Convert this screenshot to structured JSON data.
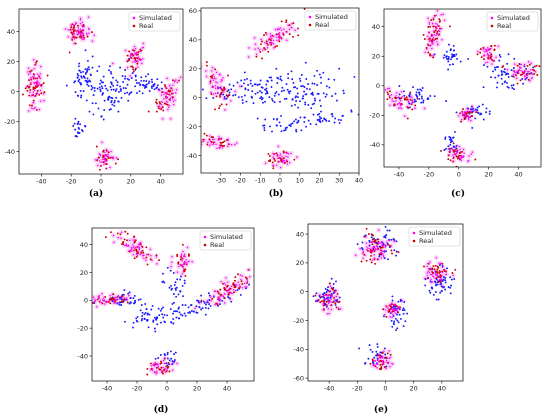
{
  "chart_data": [
    {
      "type": "scatter",
      "panel_label": "(a)",
      "legend": {
        "position": "top-right",
        "entries": [
          "Simulated",
          "Real"
        ]
      },
      "xlim": [
        -55,
        55
      ],
      "ylim": [
        -55,
        55
      ],
      "xticks": [
        -40,
        -20,
        0,
        20,
        40
      ],
      "yticks": [
        -40,
        -20,
        0,
        20,
        40
      ],
      "series": [
        {
          "name": "Simulated",
          "color": "#ff00ff",
          "clusters": [
            {
              "cx": -15,
              "cy": 40,
              "sx": 4,
              "sy": 4,
              "n": 55,
              "theta": 0
            },
            {
              "cx": 22,
              "cy": 22,
              "sx": 3,
              "sy": 4,
              "n": 40,
              "theta": -0.6
            },
            {
              "cx": -45,
              "cy": 3,
              "sx": 3,
              "sy": 7,
              "n": 60,
              "theta": 0
            },
            {
              "cx": 45,
              "cy": -3,
              "sx": 3,
              "sy": 6,
              "n": 50,
              "theta": -0.5
            },
            {
              "cx": 2,
              "cy": -45,
              "sx": 3,
              "sy": 3,
              "n": 35,
              "theta": 0
            }
          ]
        },
        {
          "name": "Real",
          "color": "#cc0000",
          "clusters": [
            {
              "cx": -15,
              "cy": 40,
              "sx": 4,
              "sy": 4,
              "n": 40,
              "theta": 0
            },
            {
              "cx": 22,
              "cy": 22,
              "sx": 3,
              "sy": 4,
              "n": 30,
              "theta": -0.6
            },
            {
              "cx": -45,
              "cy": 3,
              "sx": 3,
              "sy": 7,
              "n": 45,
              "theta": 0
            },
            {
              "cx": 45,
              "cy": -3,
              "sx": 3,
              "sy": 6,
              "n": 35,
              "theta": -0.5
            },
            {
              "cx": 2,
              "cy": -45,
              "sx": 3,
              "sy": 3,
              "n": 28,
              "theta": 0
            }
          ]
        },
        {
          "name": "Blue",
          "color": "#1a1aff",
          "clusters": [
            {
              "cx": -12,
              "cy": 10,
              "sx": 4,
              "sy": 6,
              "n": 45,
              "theta": 0
            },
            {
              "cx": 5,
              "cy": 2,
              "sx": 10,
              "sy": 8,
              "n": 110,
              "theta": 0.3
            },
            {
              "cx": 30,
              "cy": 5,
              "sx": 8,
              "sy": 3,
              "n": 45,
              "theta": -0.2
            },
            {
              "cx": -15,
              "cy": -25,
              "sx": 3,
              "sy": 4,
              "n": 20,
              "theta": 0
            }
          ]
        }
      ]
    },
    {
      "type": "scatter",
      "panel_label": "(b)",
      "legend": {
        "position": "top-right",
        "entries": [
          "Simulated",
          "Real"
        ]
      },
      "xlim": [
        -40,
        40
      ],
      "ylim": [
        -52,
        62
      ],
      "xticks": [
        -30,
        -20,
        -10,
        0,
        10,
        20,
        30,
        40
      ],
      "yticks": [
        -40,
        -20,
        0,
        20,
        40,
        60
      ],
      "series": [
        {
          "name": "Simulated",
          "color": "#ff00ff",
          "clusters": [
            {
              "cx": -2,
              "cy": 42,
              "sx": 8,
              "sy": 3,
              "n": 55,
              "theta": 0.75
            },
            {
              "cx": -31,
              "cy": 8,
              "sx": 3,
              "sy": 7,
              "n": 45,
              "theta": 0.3
            },
            {
              "cx": -33,
              "cy": -30,
              "sx": 4,
              "sy": 2,
              "n": 35,
              "theta": -0.2
            },
            {
              "cx": 0,
              "cy": -42,
              "sx": 3,
              "sy": 3,
              "n": 35,
              "theta": 0
            }
          ]
        },
        {
          "name": "Real",
          "color": "#cc0000",
          "clusters": [
            {
              "cx": -2,
              "cy": 42,
              "sx": 8,
              "sy": 3,
              "n": 40,
              "theta": 0.75
            },
            {
              "cx": -31,
              "cy": 8,
              "sx": 3,
              "sy": 7,
              "n": 32,
              "theta": 0.3
            },
            {
              "cx": -33,
              "cy": -30,
              "sx": 4,
              "sy": 2,
              "n": 25,
              "theta": -0.2
            },
            {
              "cx": 0,
              "cy": -42,
              "sx": 3,
              "sy": 3,
              "n": 26,
              "theta": 0
            }
          ]
        },
        {
          "name": "Blue",
          "color": "#1a1aff",
          "clusters": [
            {
              "cx": -15,
              "cy": 5,
              "sx": 12,
              "sy": 5,
              "n": 70,
              "theta": 0
            },
            {
              "cx": 10,
              "cy": 5,
              "sx": 13,
              "sy": 7,
              "n": 110,
              "theta": -0.2
            },
            {
              "cx": 20,
              "cy": -15,
              "sx": 8,
              "sy": 3,
              "n": 40,
              "theta": 0.3
            },
            {
              "cx": 0,
              "cy": -18,
              "sx": 6,
              "sy": 3,
              "n": 30,
              "theta": 0
            }
          ]
        }
      ]
    },
    {
      "type": "scatter",
      "panel_label": "(c)",
      "legend": {
        "position": "top-right",
        "entries": [
          "Simulated",
          "Real"
        ]
      },
      "xlim": [
        -50,
        55
      ],
      "ylim": [
        -55,
        52
      ],
      "xticks": [
        -40,
        -20,
        0,
        20,
        40
      ],
      "yticks": [
        -40,
        -20,
        0,
        20,
        40
      ],
      "series": [
        {
          "name": "Simulated",
          "color": "#ff00ff",
          "clusters": [
            {
              "cx": -17,
              "cy": 35,
              "sx": 3,
              "sy": 8,
              "n": 55,
              "theta": -0.2
            },
            {
              "cx": -38,
              "cy": -10,
              "sx": 6,
              "sy": 3,
              "n": 40,
              "theta": -0.35
            },
            {
              "cx": 20,
              "cy": 22,
              "sx": 3,
              "sy": 3,
              "n": 30,
              "theta": 0
            },
            {
              "cx": 42,
              "cy": 10,
              "sx": 5,
              "sy": 3,
              "n": 40,
              "theta": 0
            },
            {
              "cx": 5,
              "cy": -20,
              "sx": 3,
              "sy": 2,
              "n": 28,
              "theta": 0
            },
            {
              "cx": 0,
              "cy": -46,
              "sx": 4,
              "sy": 3,
              "n": 35,
              "theta": 0
            }
          ]
        },
        {
          "name": "Real",
          "color": "#cc0000",
          "clusters": [
            {
              "cx": -17,
              "cy": 35,
              "sx": 3,
              "sy": 8,
              "n": 40,
              "theta": -0.2
            },
            {
              "cx": -38,
              "cy": -10,
              "sx": 6,
              "sy": 3,
              "n": 30,
              "theta": -0.35
            },
            {
              "cx": 20,
              "cy": 22,
              "sx": 3,
              "sy": 3,
              "n": 22,
              "theta": 0
            },
            {
              "cx": 42,
              "cy": 10,
              "sx": 5,
              "sy": 3,
              "n": 30,
              "theta": 0
            },
            {
              "cx": 5,
              "cy": -20,
              "sx": 3,
              "sy": 2,
              "n": 20,
              "theta": 0
            },
            {
              "cx": 0,
              "cy": -46,
              "sx": 4,
              "sy": 3,
              "n": 26,
              "theta": 0
            }
          ]
        },
        {
          "name": "Blue",
          "color": "#1a1aff",
          "clusters": [
            {
              "cx": -5,
              "cy": 20,
              "sx": 4,
              "sy": 3,
              "n": 35,
              "theta": 0
            },
            {
              "cx": 30,
              "cy": 8,
              "sx": 8,
              "sy": 5,
              "n": 60,
              "theta": 0
            },
            {
              "cx": -28,
              "cy": -8,
              "sx": 6,
              "sy": 3,
              "n": 40,
              "theta": -0.2
            },
            {
              "cx": 12,
              "cy": -18,
              "sx": 4,
              "sy": 3,
              "n": 30,
              "theta": 0
            },
            {
              "cx": -5,
              "cy": -38,
              "sx": 3,
              "sy": 4,
              "n": 25,
              "theta": 0
            }
          ]
        }
      ]
    },
    {
      "type": "scatter",
      "panel_label": "(d)",
      "legend": {
        "position": "top-right",
        "entries": [
          "Simulated",
          "Real"
        ]
      },
      "xlim": [
        -50,
        58
      ],
      "ylim": [
        -58,
        52
      ],
      "xticks": [
        -40,
        -20,
        0,
        20,
        40
      ],
      "yticks": [
        -40,
        -20,
        0,
        20,
        40
      ],
      "series": [
        {
          "name": "Simulated",
          "color": "#ff00ff",
          "clusters": [
            {
              "cx": -22,
              "cy": 38,
              "sx": 8,
              "sy": 3,
              "n": 55,
              "theta": -0.55
            },
            {
              "cx": 10,
              "cy": 28,
              "sx": 3,
              "sy": 5,
              "n": 30,
              "theta": 0
            },
            {
              "cx": -38,
              "cy": 1,
              "sx": 6,
              "sy": 2,
              "n": 40,
              "theta": 0
            },
            {
              "cx": 42,
              "cy": 8,
              "sx": 10,
              "sy": 3,
              "n": 60,
              "theta": 0.6
            },
            {
              "cx": -5,
              "cy": -48,
              "sx": 4,
              "sy": 3,
              "n": 35,
              "theta": 0
            }
          ]
        },
        {
          "name": "Real",
          "color": "#cc0000",
          "clusters": [
            {
              "cx": -22,
              "cy": 38,
              "sx": 8,
              "sy": 3,
              "n": 40,
              "theta": -0.55
            },
            {
              "cx": 10,
              "cy": 28,
              "sx": 3,
              "sy": 5,
              "n": 22,
              "theta": 0
            },
            {
              "cx": -38,
              "cy": 1,
              "sx": 6,
              "sy": 2,
              "n": 30,
              "theta": 0
            },
            {
              "cx": 42,
              "cy": 8,
              "sx": 10,
              "sy": 3,
              "n": 45,
              "theta": 0.6
            },
            {
              "cx": -5,
              "cy": -48,
              "sx": 4,
              "sy": 3,
              "n": 26,
              "theta": 0
            }
          ]
        },
        {
          "name": "Blue",
          "color": "#1a1aff",
          "clusters": [
            {
              "cx": -28,
              "cy": 0,
              "sx": 6,
              "sy": 3,
              "n": 40,
              "theta": 0
            },
            {
              "cx": 5,
              "cy": 10,
              "sx": 4,
              "sy": 6,
              "n": 30,
              "theta": 0
            },
            {
              "cx": 20,
              "cy": -5,
              "sx": 14,
              "sy": 3,
              "n": 70,
              "theta": 0.35
            },
            {
              "cx": -10,
              "cy": -12,
              "sx": 8,
              "sy": 4,
              "n": 50,
              "theta": 0.2
            },
            {
              "cx": 0,
              "cy": -42,
              "sx": 3,
              "sy": 3,
              "n": 20,
              "theta": 0
            }
          ]
        }
      ]
    },
    {
      "type": "scatter",
      "panel_label": "(e)",
      "legend": {
        "position": "top-right",
        "entries": [
          "Simulated",
          "Real"
        ]
      },
      "xlim": [
        -55,
        55
      ],
      "ylim": [
        -62,
        47
      ],
      "xticks": [
        -40,
        -20,
        0,
        20,
        40
      ],
      "yticks": [
        -60,
        -40,
        -20,
        0,
        20,
        40
      ],
      "series": [
        {
          "name": "Simulated",
          "color": "#ff00ff",
          "clusters": [
            {
              "cx": -7,
              "cy": 30,
              "sx": 6,
              "sy": 5,
              "n": 60,
              "theta": 0
            },
            {
              "cx": 35,
              "cy": 12,
              "sx": 5,
              "sy": 4,
              "n": 45,
              "theta": 0
            },
            {
              "cx": -40,
              "cy": -5,
              "sx": 4,
              "sy": 4,
              "n": 40,
              "theta": 0
            },
            {
              "cx": 5,
              "cy": -12,
              "sx": 3,
              "sy": 3,
              "n": 30,
              "theta": 0
            },
            {
              "cx": -3,
              "cy": -48,
              "sx": 4,
              "sy": 3,
              "n": 35,
              "theta": 0
            }
          ]
        },
        {
          "name": "Real",
          "color": "#cc0000",
          "clusters": [
            {
              "cx": -7,
              "cy": 30,
              "sx": 6,
              "sy": 5,
              "n": 45,
              "theta": 0
            },
            {
              "cx": 35,
              "cy": 12,
              "sx": 5,
              "sy": 4,
              "n": 32,
              "theta": 0
            },
            {
              "cx": -40,
              "cy": -5,
              "sx": 4,
              "sy": 4,
              "n": 30,
              "theta": 0
            },
            {
              "cx": 5,
              "cy": -12,
              "sx": 3,
              "sy": 3,
              "n": 22,
              "theta": 0
            },
            {
              "cx": -3,
              "cy": -48,
              "sx": 4,
              "sy": 3,
              "n": 26,
              "theta": 0
            }
          ]
        },
        {
          "name": "Blue",
          "color": "#1a1aff",
          "clusters": [
            {
              "cx": -3,
              "cy": 33,
              "sx": 6,
              "sy": 5,
              "n": 50,
              "theta": 0
            },
            {
              "cx": 38,
              "cy": 5,
              "sx": 5,
              "sy": 5,
              "n": 55,
              "theta": 0
            },
            {
              "cx": -40,
              "cy": -3,
              "sx": 4,
              "sy": 5,
              "n": 45,
              "theta": 0
            },
            {
              "cx": 8,
              "cy": -15,
              "sx": 3,
              "sy": 6,
              "n": 40,
              "theta": 0
            },
            {
              "cx": -5,
              "cy": -45,
              "sx": 4,
              "sy": 4,
              "n": 30,
              "theta": 0
            }
          ]
        }
      ]
    }
  ]
}
